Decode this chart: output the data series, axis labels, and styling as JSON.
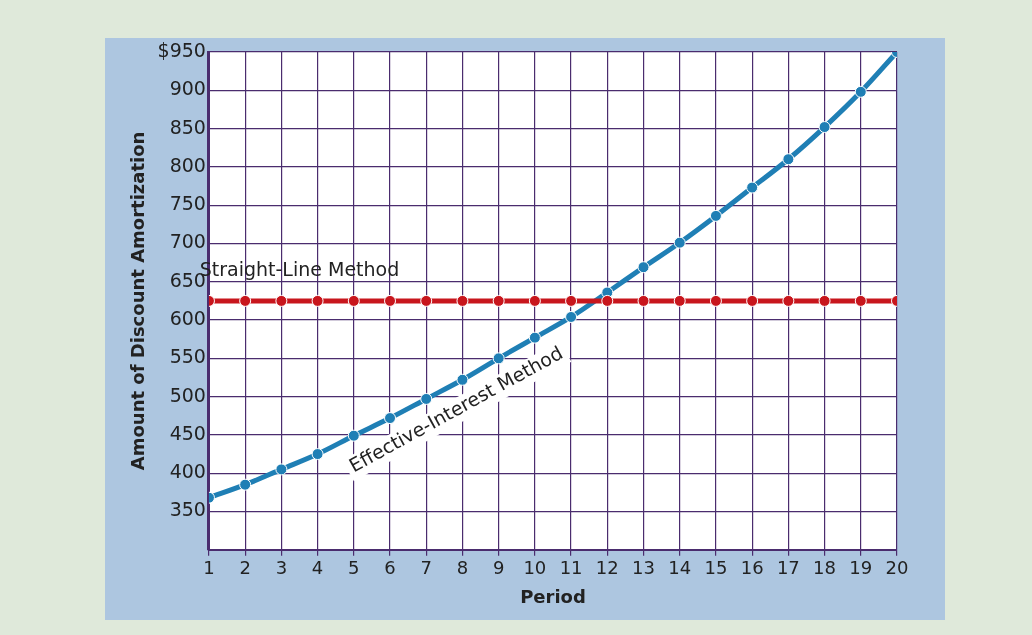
{
  "chart_data": {
    "type": "line",
    "xlabel": "Period",
    "ylabel": "Amount of Discount Amortization",
    "x": [
      1,
      2,
      3,
      4,
      5,
      6,
      7,
      8,
      9,
      10,
      11,
      12,
      13,
      14,
      15,
      16,
      17,
      18,
      19,
      20
    ],
    "xlim": [
      1,
      20
    ],
    "xticks": [
      1,
      2,
      3,
      4,
      5,
      6,
      7,
      8,
      9,
      10,
      11,
      12,
      13,
      14,
      15,
      16,
      17,
      18,
      19,
      20
    ],
    "ylim": [
      300,
      950
    ],
    "yticks": [
      350,
      400,
      450,
      500,
      550,
      600,
      650,
      700,
      750,
      800,
      850,
      900,
      {
        "value": 950,
        "label": "$950"
      }
    ],
    "grid": true,
    "legend": false,
    "marker": "circle",
    "line_style": "solid",
    "series": [
      {
        "name": "Straight-Line Method",
        "color": "#c8161d",
        "values": [
          625,
          625,
          625,
          625,
          625,
          625,
          625,
          625,
          625,
          625,
          625,
          625,
          625,
          625,
          625,
          625,
          625,
          625,
          625,
          625
        ]
      },
      {
        "name": "Effective-Interest Method",
        "color": "#1f7fb5",
        "values": [
          368,
          385,
          405,
          425,
          449,
          472,
          497,
          522,
          550,
          577,
          604,
          636,
          669,
          701,
          736,
          773,
          810,
          852,
          898,
          950
        ]
      }
    ]
  }
}
